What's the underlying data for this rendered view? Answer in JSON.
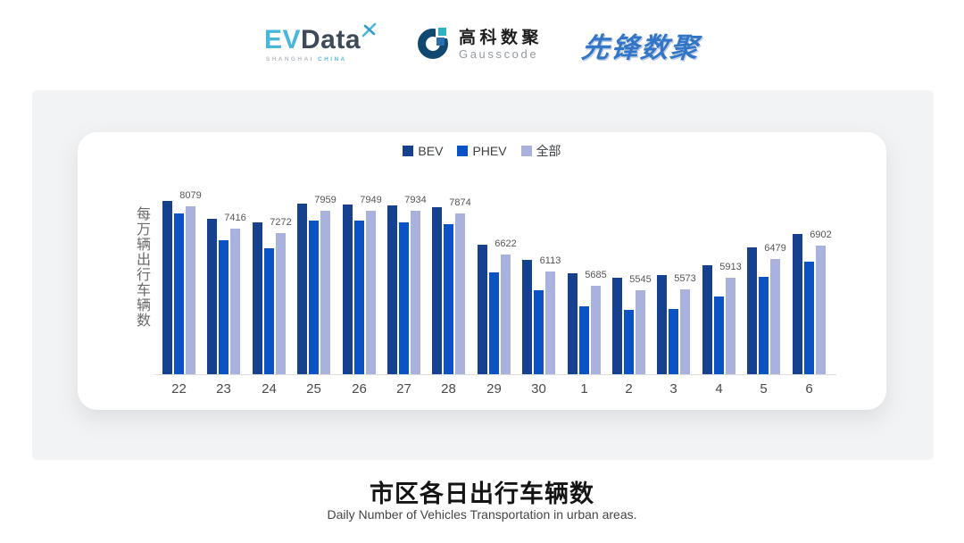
{
  "header": {
    "evdata": {
      "part1": "EV",
      "part2": "Data",
      "sub1": "SHANGHAI",
      "sub2": "CHINA"
    },
    "gausscode": {
      "cn": "高科数聚",
      "en": "Gausscode"
    },
    "pioneer": {
      "text": "先锋数聚"
    }
  },
  "chart_data": {
    "type": "bar",
    "title": "市区各日出行车辆数",
    "subtitle": "Daily Number of Vehicles Transportation in urban areas.",
    "ylabel": "每万辆出行车辆数",
    "xlabel": "",
    "categories": [
      "22",
      "23",
      "24",
      "25",
      "26",
      "27",
      "28",
      "29",
      "30",
      "1",
      "2",
      "3",
      "4",
      "5",
      "6"
    ],
    "series": [
      {
        "name": "BEV",
        "color": "#15418E",
        "labels_visible": false,
        "values": [
          8234,
          7693,
          7585,
          8169,
          8142,
          8099,
          8053,
          6926,
          6458,
          6060,
          5917,
          5998,
          6296,
          6837,
          7242
        ]
      },
      {
        "name": "PHEV",
        "color": "#0B52C5",
        "labels_visible": false,
        "values": [
          7872,
          7044,
          6809,
          7656,
          7648,
          7593,
          7547,
          6088,
          5530,
          5060,
          4952,
          4971,
          5349,
          5953,
          6405
        ]
      },
      {
        "name": "全部",
        "color": "#A9B2DC",
        "labels_visible": true,
        "values": [
          8079,
          7416,
          7272,
          7959,
          7949,
          7934,
          7874,
          6622,
          6113,
          5685,
          5545,
          5573,
          5913,
          6479,
          6902
        ]
      }
    ],
    "ylim": [
      3000,
      8500
    ],
    "grid": false,
    "legend_position": "top"
  },
  "footer": {
    "title": "市区各日出行车辆数",
    "subtitle": "Daily Number of Vehicles Transportation in urban areas."
  }
}
